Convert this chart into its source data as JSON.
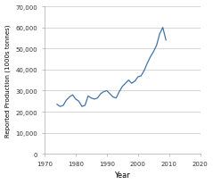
{
  "years": [
    1974,
    1975,
    1976,
    1977,
    1978,
    1979,
    1980,
    1981,
    1982,
    1983,
    1984,
    1985,
    1986,
    1987,
    1988,
    1989,
    1990,
    1991,
    1992,
    1993,
    1994,
    1995,
    1996,
    1997,
    1998,
    1999,
    2000,
    2001,
    2002,
    2003,
    2004,
    2005,
    2006,
    2007,
    2008,
    2009
  ],
  "values": [
    23500,
    22500,
    23000,
    25500,
    27000,
    28000,
    26000,
    25000,
    22500,
    23000,
    27500,
    26500,
    26000,
    26500,
    28500,
    29500,
    30000,
    28500,
    27000,
    26500,
    29500,
    32000,
    33500,
    35000,
    33500,
    34500,
    36500,
    37000,
    39500,
    43000,
    46000,
    48500,
    51500,
    57000,
    60000,
    54000
  ],
  "xlabel": "Year",
  "ylabel": "Reported Production (1000s tonnes)",
  "xlim": [
    1970,
    2020
  ],
  "ylim": [
    0,
    70000
  ],
  "yticks": [
    0,
    10000,
    20000,
    30000,
    40000,
    50000,
    60000,
    70000
  ],
  "ytick_labels": [
    "0",
    "10,000",
    "20,000",
    "30,000",
    "40,000",
    "50,000",
    "60,000",
    "70,000"
  ],
  "xticks": [
    1970,
    1980,
    1990,
    2000,
    2010,
    2020
  ],
  "line_color": "#4472a8",
  "line_width": 0.9,
  "bg_color": "#ffffff",
  "grid_color": "#d0d0d0",
  "spine_color": "#aaaaaa"
}
